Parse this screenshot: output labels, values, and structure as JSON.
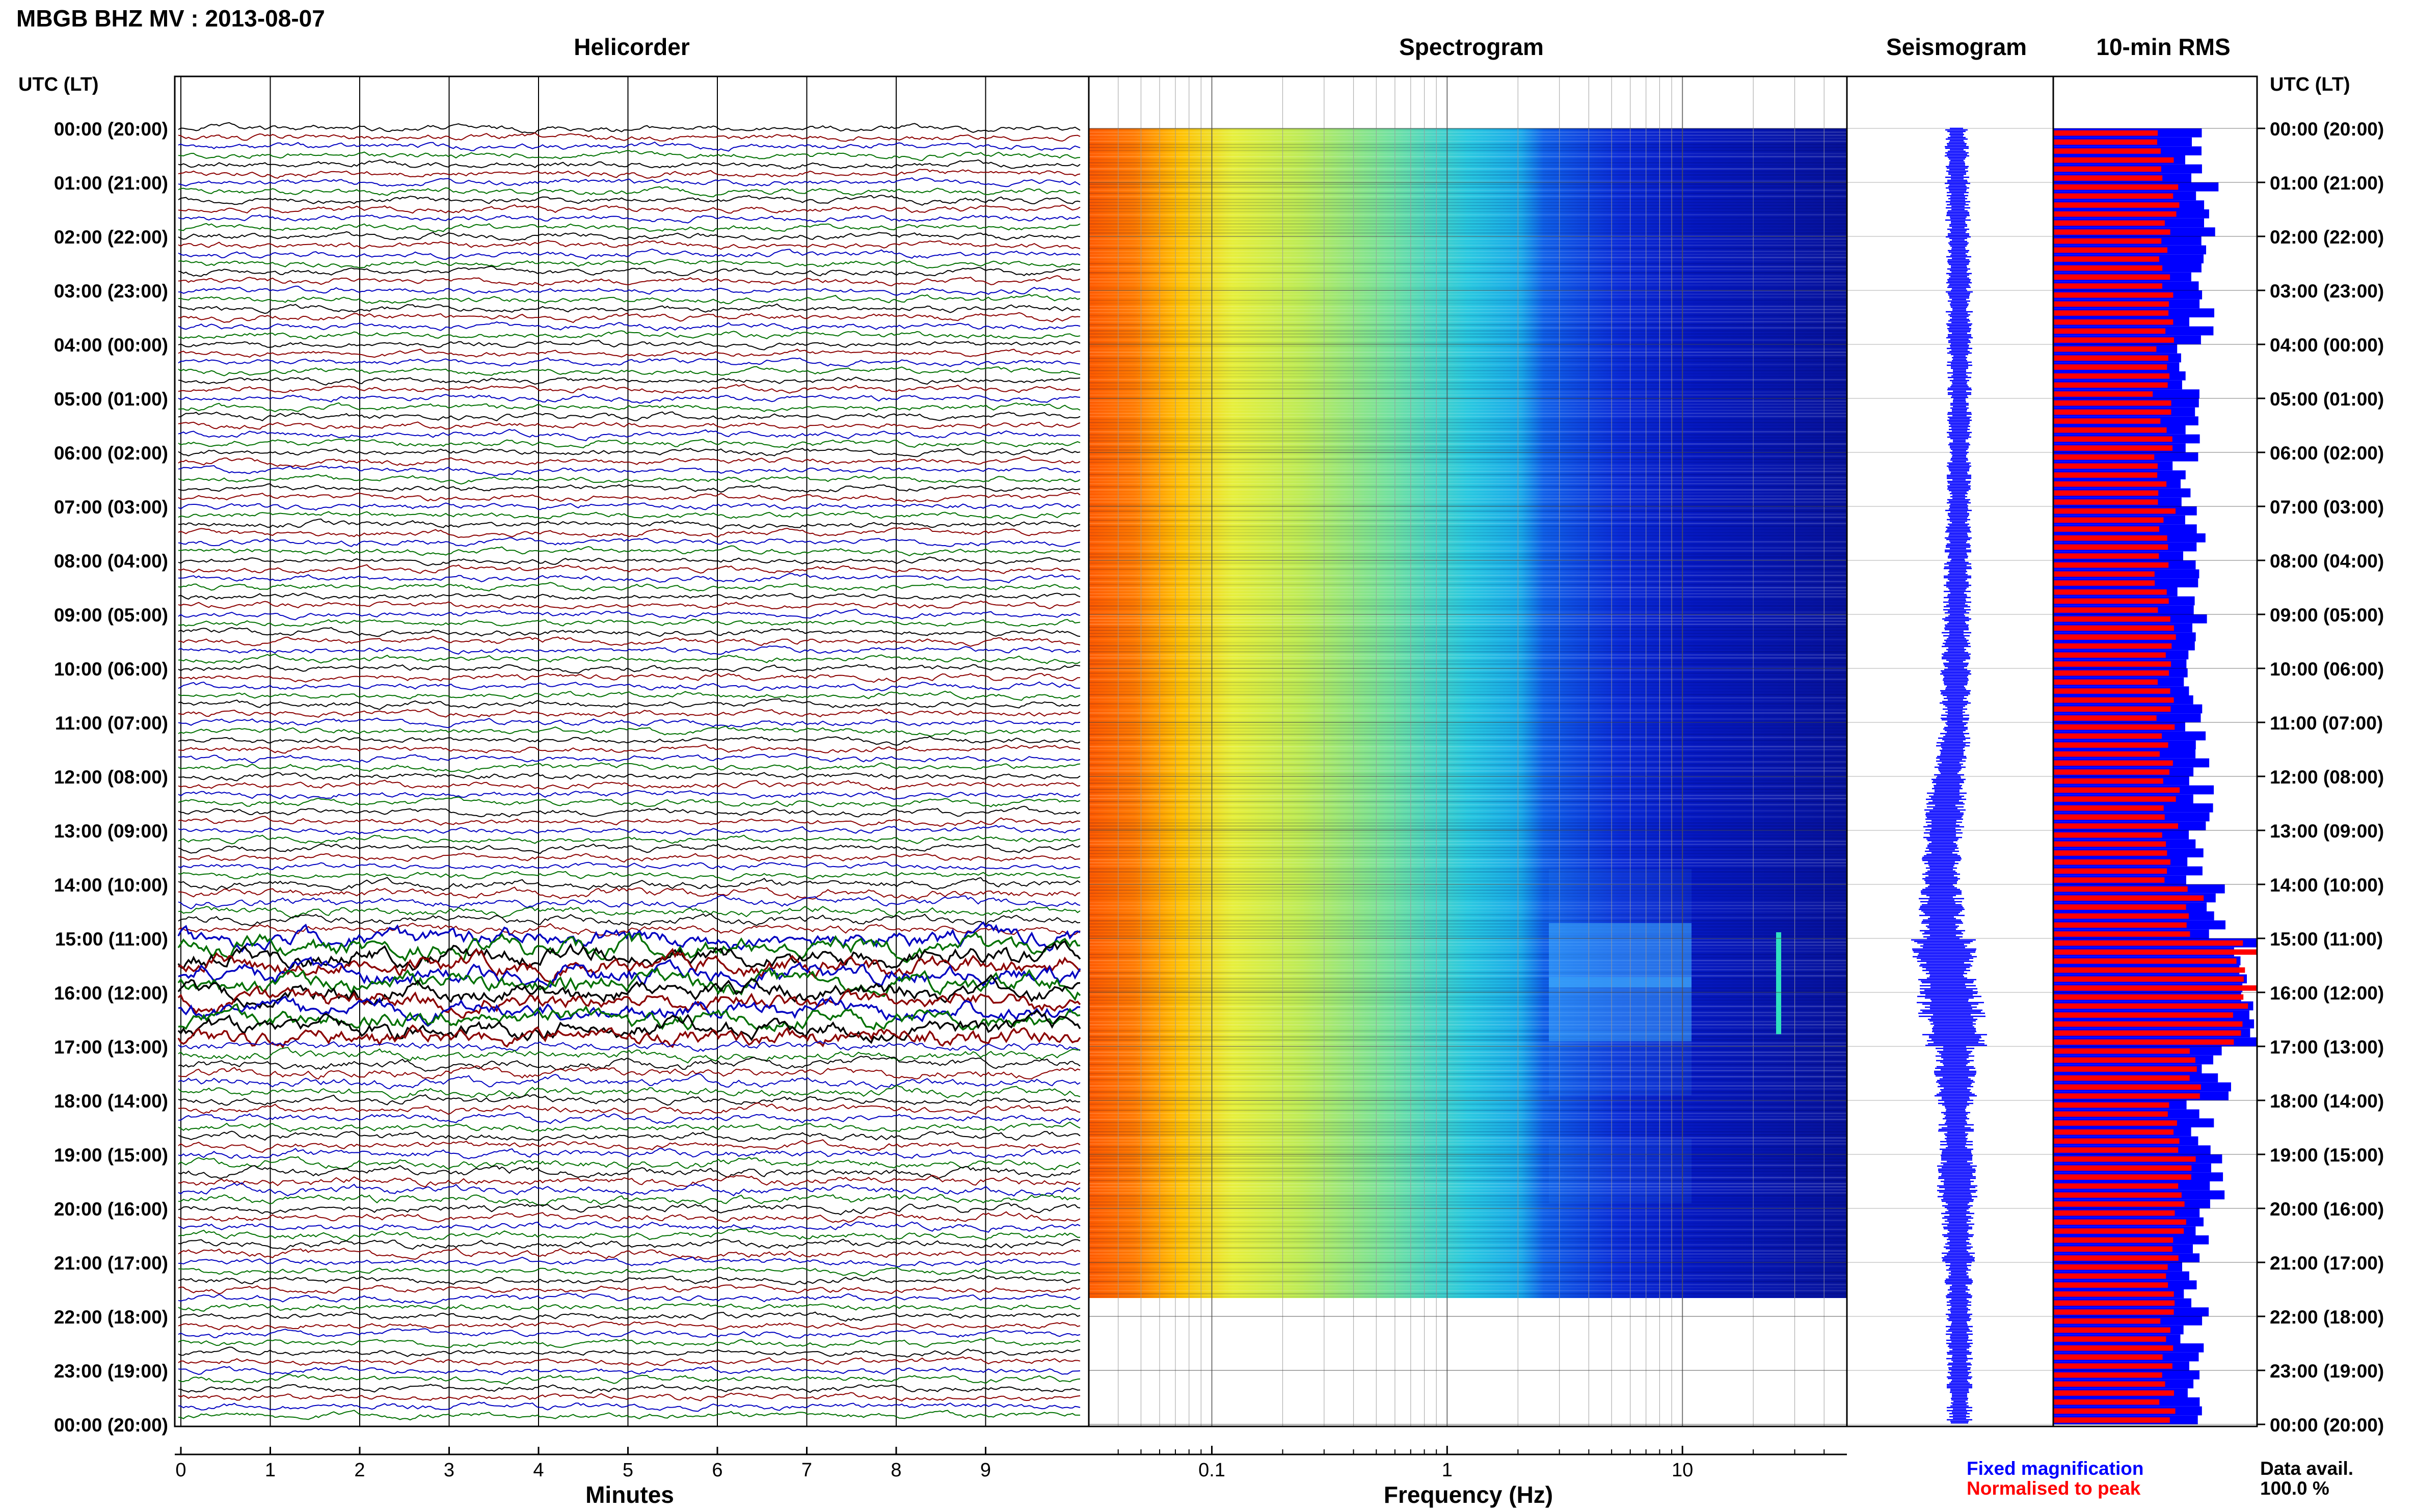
{
  "header": {
    "title": "MBGB BHZ MV : 2013-08-07",
    "utc_label_left": "UTC (LT)",
    "utc_label_right": "UTC (LT)"
  },
  "panels": {
    "helicorder_title": "Helicorder",
    "spectrogram_title": "Spectrogram",
    "seismogram_title": "Seismogram",
    "rms_title": "10-min RMS"
  },
  "time_labels": [
    "00:00 (20:00)",
    "01:00 (21:00)",
    "02:00 (22:00)",
    "03:00 (23:00)",
    "04:00 (00:00)",
    "05:00 (01:00)",
    "06:00 (02:00)",
    "07:00 (03:00)",
    "08:00 (04:00)",
    "09:00 (05:00)",
    "10:00 (06:00)",
    "11:00 (07:00)",
    "12:00 (08:00)",
    "13:00 (09:00)",
    "14:00 (10:00)",
    "15:00 (11:00)",
    "16:00 (12:00)",
    "17:00 (13:00)",
    "18:00 (14:00)",
    "19:00 (15:00)",
    "20:00 (16:00)",
    "21:00 (17:00)",
    "22:00 (18:00)",
    "23:00 (19:00)",
    "00:00 (20:00)"
  ],
  "helicorder_axis": {
    "ticks": [
      "0",
      "1",
      "2",
      "3",
      "4",
      "5",
      "6",
      "7",
      "8",
      "9"
    ],
    "xlabel": "Minutes",
    "trace_colors": [
      "#000000",
      "#8b0000",
      "#0000c0",
      "#007000"
    ]
  },
  "spectrogram_axis": {
    "ticks": [
      "0.1",
      "1",
      "10"
    ],
    "xlabel": "Frequency (Hz)",
    "scale": "log"
  },
  "legend": {
    "fixed": "Fixed magnification",
    "normalised": "Normalised to peak",
    "fixed_color": "#0000ff",
    "normalised_color": "#ff0000",
    "avail_label": "Data avail.",
    "avail_value": "100.0 %"
  },
  "chart_data": {
    "type": "bar",
    "title": "10-min RMS",
    "categories": [
      "00:00 (20:00)",
      "01:00 (21:00)",
      "02:00 (22:00)",
      "03:00 (23:00)",
      "04:00 (00:00)",
      "05:00 (01:00)",
      "06:00 (02:00)",
      "07:00 (03:00)",
      "08:00 (04:00)",
      "09:00 (05:00)",
      "10:00 (06:00)",
      "11:00 (07:00)",
      "12:00 (08:00)",
      "13:00 (09:00)",
      "14:00 (10:00)",
      "15:00 (11:00)",
      "16:00 (12:00)",
      "17:00 (13:00)",
      "18:00 (14:00)",
      "19:00 (15:00)",
      "20:00 (16:00)",
      "21:00 (17:00)",
      "22:00 (18:00)",
      "23:00 (19:00)"
    ],
    "series": [
      {
        "name": "Fixed magnification",
        "color": "#0000ff",
        "values": [
          0.68,
          0.74,
          0.71,
          0.72,
          0.66,
          0.69,
          0.65,
          0.7,
          0.67,
          0.71,
          0.68,
          0.7,
          0.72,
          0.69,
          0.78,
          0.96,
          0.95,
          0.8,
          0.72,
          0.78,
          0.74,
          0.7,
          0.69,
          0.7
        ]
      },
      {
        "name": "Normalised to peak",
        "color": "#ff0000",
        "values": [
          0.55,
          0.58,
          0.56,
          0.57,
          0.53,
          0.55,
          0.52,
          0.56,
          0.54,
          0.57,
          0.55,
          0.56,
          0.58,
          0.55,
          0.7,
          0.95,
          0.94,
          0.7,
          0.6,
          0.66,
          0.62,
          0.57,
          0.55,
          0.56
        ]
      }
    ],
    "helicorder_hourly_amplitude": [
      1.0,
      1.0,
      1.0,
      1.0,
      0.95,
      1.0,
      0.95,
      1.0,
      0.95,
      1.0,
      1.0,
      1.0,
      1.05,
      1.0,
      1.4,
      3.2,
      3.0,
      1.5,
      1.2,
      1.4,
      1.2,
      1.05,
      1.0,
      1.0
    ],
    "seismogram_hourly_width": [
      1.0,
      1.0,
      1.0,
      1.05,
      1.0,
      1.0,
      1.0,
      1.05,
      1.1,
      1.15,
      1.2,
      1.3,
      1.6,
      1.6,
      1.8,
      2.6,
      2.7,
      1.8,
      1.4,
      1.6,
      1.3,
      1.1,
      1.05,
      1.0
    ]
  }
}
